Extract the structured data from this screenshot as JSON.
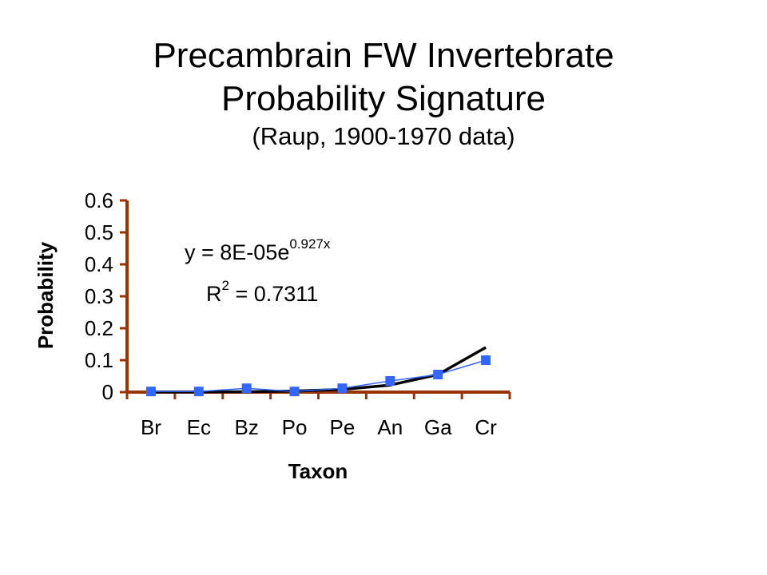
{
  "title_line1": "Precambrain FW Invertebrate",
  "title_line2": "Probability Signature",
  "subtitle": "(Raup, 1900-1970 data)",
  "chart_data": {
    "type": "line",
    "categories": [
      "Br",
      "Ec",
      "Bz",
      "Po",
      "Pe",
      "An",
      "Ga",
      "Cr"
    ],
    "series": [
      {
        "values": [
          0.002,
          0.002,
          0.012,
          0.002,
          0.012,
          0.035,
          0.055,
          0.1
        ],
        "color": "#3366ff",
        "marker": "square"
      }
    ],
    "trendline": {
      "type": "exponential",
      "values": [
        0.0002,
        0.0005,
        0.0013,
        0.0033,
        0.0085,
        0.022,
        0.055,
        0.14
      ],
      "color": "#000000"
    },
    "equation": {
      "prefix": "y = 8E-05e",
      "exponent": "0.927x"
    },
    "r_squared": {
      "prefix": "R",
      "superscript": "2",
      "value": " = 0.7311"
    },
    "xlabel": "Taxon",
    "ylabel": "Probability",
    "ylim": [
      0,
      0.6
    ],
    "yticks": [
      "0",
      "0.1",
      "0.2",
      "0.3",
      "0.4",
      "0.5",
      "0.6"
    ],
    "axis_color": "#993300",
    "grid": false
  }
}
